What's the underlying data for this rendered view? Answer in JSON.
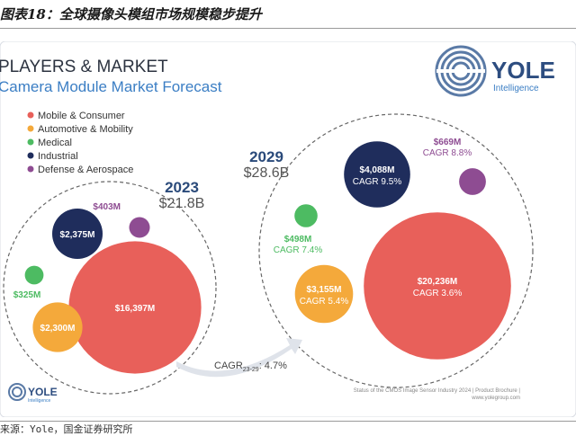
{
  "caption": "图表18：全球摄像头模组市场规模稳步提升",
  "source": "来源：Yole，国金证券研究所",
  "header": {
    "title": "PLAYERS & MARKET",
    "subtitle": "Camera Module Market Forecast"
  },
  "logo": {
    "name": "YOLE",
    "tagline": "Intelligence",
    "small_name": "YOLE",
    "small_tagline": "Intelligence"
  },
  "footer": {
    "line1": "Status of the CMOS Image Sensor Industry 2024 | Product Brochure |",
    "line2": "www.yolegroup.com"
  },
  "colors": {
    "mobile": "#E8605A",
    "automotive": "#F4A93B",
    "medical": "#4DBB62",
    "industrial": "#1F2D5C",
    "defense": "#8E4C92",
    "accent": "#2A4A7A"
  },
  "chart_data": {
    "type": "bubble",
    "categories": [
      "Mobile & Consumer",
      "Automotive & Mobility",
      "Medical",
      "Industrial",
      "Defense & Aerospace"
    ],
    "legend_position": "top-left",
    "years": [
      {
        "year": "2023",
        "total": "$21.8B",
        "values": [
          {
            "category": "Mobile & Consumer",
            "value": 16397,
            "label": "$16,397M"
          },
          {
            "category": "Automotive & Mobility",
            "value": 2300,
            "label": "$2,300M"
          },
          {
            "category": "Medical",
            "value": 325,
            "label": "$325M"
          },
          {
            "category": "Industrial",
            "value": 2375,
            "label": "$2,375M"
          },
          {
            "category": "Defense & Aerospace",
            "value": 403,
            "label": "$403M"
          }
        ]
      },
      {
        "year": "2029",
        "total": "$28.6B",
        "values": [
          {
            "category": "Mobile & Consumer",
            "value": 20236,
            "label": "$20,236M",
            "cagr": "CAGR 3.6%"
          },
          {
            "category": "Automotive & Mobility",
            "value": 3155,
            "label": "$3,155M",
            "cagr": "CAGR 5.4%"
          },
          {
            "category": "Medical",
            "value": 498,
            "label": "$498M",
            "cagr": "CAGR 7.4%"
          },
          {
            "category": "Industrial",
            "value": 4088,
            "label": "$4,088M",
            "cagr": "CAGR 9.5%"
          },
          {
            "category": "Defense & Aerospace",
            "value": 669,
            "label": "$669M",
            "cagr": "CAGR 8.8%"
          }
        ]
      }
    ],
    "overall_cagr": {
      "prefix": "CAGR",
      "subscript": "23-29",
      "value": ": 4.7%"
    }
  }
}
